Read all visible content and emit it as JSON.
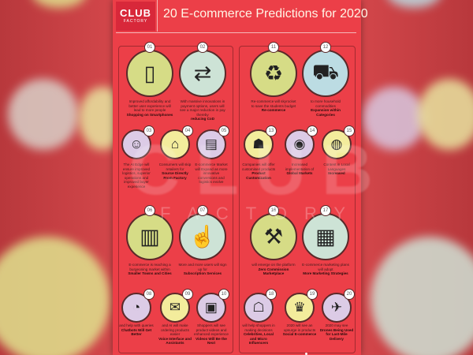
{
  "header": {
    "logo_line1": "CLUB",
    "logo_line2": "FACTORY",
    "title": "20 E-commerce Predictions for 2020"
  },
  "watermark": {
    "line1": "CLUB",
    "line2": "FACTORY"
  },
  "colors": {
    "background": "#ec3f48",
    "logo": "#d8283a",
    "yellow_green": "#d6dc86",
    "mint": "#cde3d6",
    "lavender": "#dccbe6",
    "pale_yellow": "#f3ec9c",
    "light_blue": "#bcdce3"
  },
  "items": [
    {
      "num": "01",
      "icon": "smartphone-icon",
      "color": "#d6dc86",
      "text": "Improved affordability and better user experience will lead to more people",
      "bold": "Shopping on Smartphones"
    },
    {
      "num": "02",
      "icon": "payment-exchange-icon",
      "color": "#cde3d6",
      "text": "With massive innovations in payment options, users will see a major reduction in pay thereby",
      "bold": "reducing CoD"
    },
    {
      "num": "03",
      "icon": "ai-head-icon",
      "color": "#dccbe6",
      "text": "The AI Edge will ensure improved logistics, superior operations and improved buyer experience",
      "bold": ""
    },
    {
      "num": "04",
      "icon": "factory-icon",
      "color": "#f3ec9c",
      "text": "Consumers will skip retailers for",
      "bold": "Source Directly From Factory"
    },
    {
      "num": "05",
      "icon": "ecommerce-tablet-icon",
      "color": "#dccbe6",
      "text": "E-commerce Market will Expand as more innovative conversions and logistics evolve",
      "bold": ""
    },
    {
      "num": "06",
      "icon": "city-icon",
      "color": "#d6dc86",
      "text": "E-commerce is reaching a burgeoning market within",
      "bold": "Smaller Towns and Cities"
    },
    {
      "num": "07",
      "icon": "subscribe-icon",
      "color": "#cde3d6",
      "text": "More and more users will sign up for",
      "bold": "Subscription Services"
    },
    {
      "num": "08",
      "icon": "chatbot-icon",
      "color": "#dccbe6",
      "text": "and help with queries",
      "bold": "Chatbots Will Get Better"
    },
    {
      "num": "09",
      "icon": "voicemail-icon",
      "color": "#f3ec9c",
      "text": "and AI will make ordering products easier",
      "bold": "Voice Interface and Assistants"
    },
    {
      "num": "10",
      "icon": "video-call-icon",
      "color": "#dccbe6",
      "text": "Shoppers will see product videos and enhanced experience",
      "bold": "Videos Will Be the Next"
    },
    {
      "num": "11",
      "icon": "recycle-bag-icon",
      "color": "#d6dc86",
      "text": "Re-commerce will skyrocket to save the students budget",
      "bold": "Re-commerce"
    },
    {
      "num": "12",
      "icon": "shopping-cart-person-icon",
      "color": "#bcdce3",
      "text": "to more household commodities",
      "bold": "Expansion within Categories"
    },
    {
      "num": "13",
      "icon": "product-customization-icon",
      "color": "#f3ec9c",
      "text": "Companies will offer customised products",
      "bold": "Product Customization"
    },
    {
      "num": "14",
      "icon": "nfc-icon",
      "color": "#dccbe6",
      "text": "Increased implementation of",
      "bold": "Global Markets"
    },
    {
      "num": "15",
      "icon": "globe-chat-icon",
      "color": "#f3ec9c",
      "text": "Content in Local Languages",
      "bold": "Increased"
    },
    {
      "num": "16",
      "icon": "hand-truck-icon",
      "color": "#d6dc86",
      "text": "will emerge on the platform",
      "bold": "Zero Commission Marketplace"
    },
    {
      "num": "17",
      "icon": "analytics-board-icon",
      "color": "#cde3d6",
      "text": "E-commerce marketing plans will adopt",
      "bold": "More Marketing Strategies"
    },
    {
      "num": "18",
      "icon": "influencer-icon",
      "color": "#dccbe6",
      "text": "will help shoppers in making decisions",
      "bold": "Celebrities, Local and Micro Influencers"
    },
    {
      "num": "19",
      "icon": "dress-icon",
      "color": "#f3ec9c",
      "text": "2020 will see an upsurge in products",
      "bold": "Social E-commerce"
    },
    {
      "num": "20",
      "icon": "drone-delivery-icon",
      "color": "#dccbe6",
      "text": "2020 may see",
      "bold": "Drones Being Used for Last-Mile Delivery"
    }
  ]
}
